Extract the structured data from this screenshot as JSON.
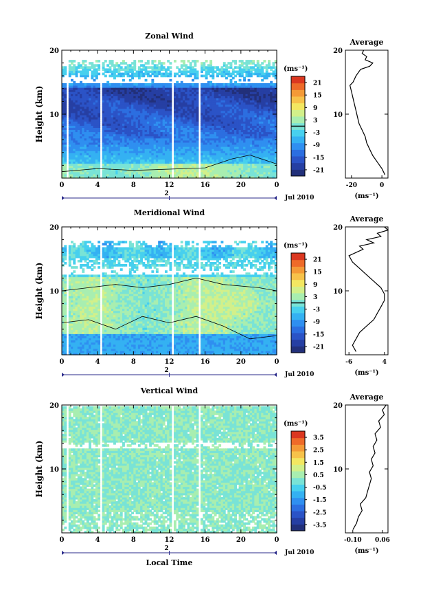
{
  "chart_data": [
    {
      "type": "heatmap",
      "title": "Zonal Wind",
      "ylabel": "Height (km)",
      "xticks": [
        "0",
        "4",
        "8",
        "12",
        "16",
        "20",
        "0"
      ],
      "date_marker": "2",
      "month_label": "Jul 2010",
      "yticks": [
        "20",
        "10"
      ],
      "xlim": [
        0,
        24
      ],
      "ylim": [
        0,
        20
      ],
      "colorbar": {
        "unit": "(ms⁻¹)",
        "ticks": [
          "21",
          "15",
          "9",
          "3",
          "-3",
          "-9",
          "-15",
          "-21"
        ],
        "range": [
          -24,
          24
        ],
        "contour": 0
      },
      "profile": {
        "title": "Average",
        "xlabel": "(ms⁻¹)",
        "xticks": [
          "-20",
          "0"
        ],
        "xlim": [
          -24,
          4
        ],
        "points": [
          [
            2,
            0.5
          ],
          [
            0,
            1.5
          ],
          [
            -3,
            2.5
          ],
          [
            -6,
            3.5
          ],
          [
            -8,
            4.5
          ],
          [
            -10,
            5.5
          ],
          [
            -11,
            6.5
          ],
          [
            -13,
            7.5
          ],
          [
            -15,
            8.5
          ],
          [
            -16,
            9.5
          ],
          [
            -17,
            10.5
          ],
          [
            -18,
            11.5
          ],
          [
            -19,
            12.5
          ],
          [
            -20,
            13.5
          ],
          [
            -21,
            14.5
          ],
          [
            -19,
            15
          ],
          [
            -17,
            16
          ],
          [
            -14,
            17
          ],
          [
            -8,
            17.5
          ],
          [
            -6,
            18
          ],
          [
            -11,
            18.5
          ],
          [
            -10,
            19
          ],
          [
            -13,
            19.5
          ],
          [
            -12,
            20
          ]
        ]
      }
    },
    {
      "type": "heatmap",
      "title": "Meridional Wind",
      "ylabel": "Height (km)",
      "xticks": [
        "0",
        "4",
        "8",
        "12",
        "16",
        "20",
        "0"
      ],
      "date_marker": "2",
      "month_label": "Jul 2010",
      "yticks": [
        "20",
        "10"
      ],
      "xlim": [
        0,
        24
      ],
      "ylim": [
        0,
        20
      ],
      "colorbar": {
        "unit": "(ms⁻¹)",
        "ticks": [
          "21",
          "15",
          "9",
          "3",
          "-3",
          "-9",
          "-15",
          "-21"
        ],
        "range": [
          -24,
          24
        ],
        "contour": 0
      },
      "profile": {
        "title": "Average",
        "xlabel": "(ms⁻¹)",
        "xticks": [
          "-6",
          "4"
        ],
        "xlim": [
          -7,
          5
        ],
        "points": [
          [
            -4,
            0.5
          ],
          [
            -5,
            1.5
          ],
          [
            -4,
            2.5
          ],
          [
            -3,
            3.5
          ],
          [
            -1,
            4.5
          ],
          [
            1,
            5.5
          ],
          [
            2,
            6.5
          ],
          [
            3,
            7.5
          ],
          [
            4,
            8.5
          ],
          [
            4,
            9.5
          ],
          [
            3,
            10.5
          ],
          [
            1,
            11.5
          ],
          [
            -1,
            12.5
          ],
          [
            -3,
            13.5
          ],
          [
            -5,
            14.5
          ],
          [
            -6,
            15.5
          ],
          [
            -4,
            16
          ],
          [
            -2,
            16.5
          ],
          [
            -3,
            17
          ],
          [
            1,
            17.5
          ],
          [
            -1,
            18
          ],
          [
            3,
            18.5
          ],
          [
            2,
            19
          ],
          [
            5,
            19.5
          ],
          [
            4,
            20
          ]
        ]
      }
    },
    {
      "type": "heatmap",
      "title": "Vertical Wind",
      "ylabel": "Height (km)",
      "xlabel": "Local Time",
      "xticks": [
        "0",
        "4",
        "8",
        "12",
        "16",
        "20",
        "0"
      ],
      "date_marker": "2",
      "month_label": "Jul 2010",
      "yticks": [
        "20",
        "10"
      ],
      "xlim": [
        0,
        24
      ],
      "ylim": [
        0,
        20
      ],
      "colorbar": {
        "unit": "(ms⁻¹)",
        "ticks": [
          "3.5",
          "2.5",
          "1.5",
          "0.5",
          "-0.5",
          "-1.5",
          "-2.5",
          "-3.5"
        ],
        "range": [
          -4,
          4
        ]
      },
      "profile": {
        "title": "Average",
        "xlabel": "(ms⁻¹)",
        "xticks": [
          "-0.10",
          "0.06"
        ],
        "xlim": [
          -0.14,
          0.09
        ],
        "points": [
          [
            -0.1,
            0.5
          ],
          [
            -0.08,
            1.5
          ],
          [
            -0.07,
            2.5
          ],
          [
            -0.05,
            3.5
          ],
          [
            -0.06,
            4.5
          ],
          [
            -0.03,
            5.5
          ],
          [
            -0.02,
            6.5
          ],
          [
            -0.01,
            7.5
          ],
          [
            0.0,
            8.5
          ],
          [
            -0.01,
            9.5
          ],
          [
            0.01,
            10.5
          ],
          [
            0.0,
            11.5
          ],
          [
            0.02,
            12.5
          ],
          [
            0.01,
            13.5
          ],
          [
            0.03,
            14.5
          ],
          [
            0.02,
            15.5
          ],
          [
            0.05,
            16.5
          ],
          [
            0.04,
            17.5
          ],
          [
            0.07,
            18.5
          ],
          [
            0.06,
            19.2
          ],
          [
            0.08,
            20
          ]
        ]
      }
    }
  ]
}
